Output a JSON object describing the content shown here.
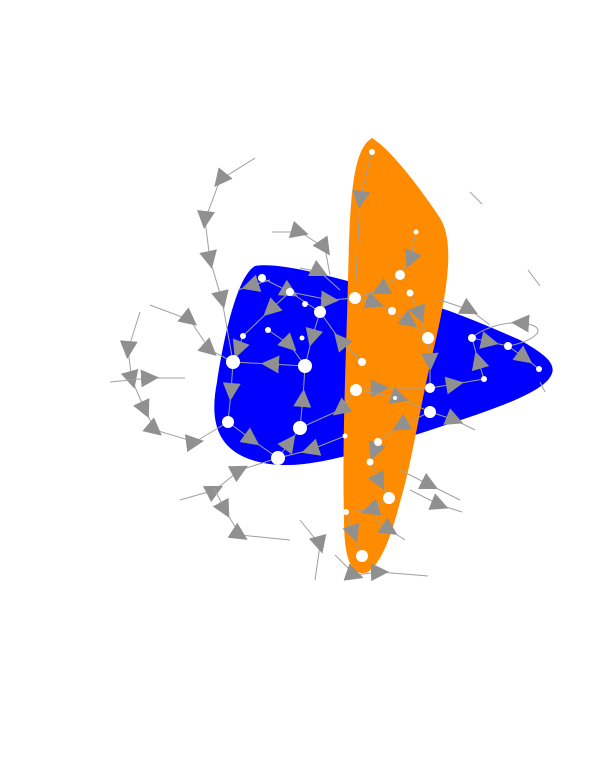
{
  "figure": {
    "kind": "directed network graph with grouped node regions"
  },
  "colors": {
    "background": "#ffffff",
    "group_blue": "#0000ff",
    "group_orange": "#ff8c00",
    "edge": "#a0a0a0",
    "arrowhead": "#909090",
    "node": "#ffffff"
  },
  "groups": [
    {
      "id": "blue-group",
      "color": "#0000ff"
    },
    {
      "id": "orange-group",
      "color": "#ff8c00"
    }
  ]
}
